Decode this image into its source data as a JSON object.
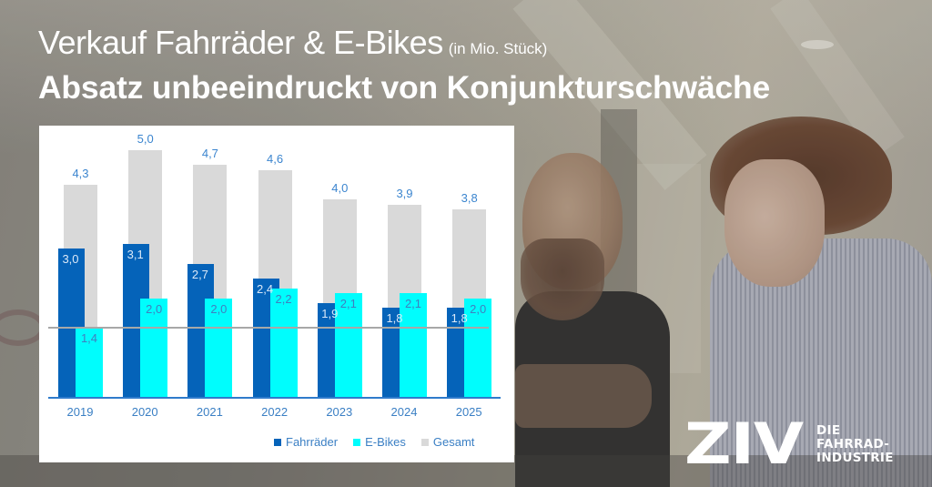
{
  "header": {
    "title": "Verkauf Fahrräder & E-Bikes",
    "unit": "(in Mio. Stück)",
    "headline": "Absatz unbeeindruckt von Konjunkturschwäche"
  },
  "logo": {
    "mark": "ZIV",
    "tagline": [
      "DIE",
      "FAHRRAD-",
      "INDUSTRIE"
    ]
  },
  "colors": {
    "fahrraeder": "#0563b9",
    "ebikes": "#00fdfd",
    "gesamt": "#d9d9d9",
    "label_blue": "#3b85cf"
  },
  "chart_data": {
    "type": "bar",
    "title": "Verkauf Fahrräder & E-Bikes (in Mio. Stück)",
    "subtitle": "Absatz unbeeindruckt von Konjunkturschwäche",
    "xlabel": "",
    "ylabel": "",
    "categories": [
      "2019",
      "2020",
      "2021",
      "2022",
      "2023",
      "2024",
      "2025"
    ],
    "series": [
      {
        "name": "Fahrräder",
        "color": "#0563b9",
        "values": [
          3.0,
          3.1,
          2.7,
          2.4,
          1.9,
          1.8,
          1.8
        ],
        "labels": [
          "3,0",
          "3,1",
          "2,7",
          "2,4",
          "1,9",
          "1,8",
          "1,8"
        ]
      },
      {
        "name": "E-Bikes",
        "color": "#00fdfd",
        "values": [
          1.4,
          2.0,
          2.0,
          2.2,
          2.1,
          2.1,
          2.0
        ],
        "labels": [
          "1,4",
          "2,0",
          "2,0",
          "2,2",
          "2,1",
          "2,1",
          "2,0"
        ]
      },
      {
        "name": "Gesamt",
        "color": "#d9d9d9",
        "values": [
          4.3,
          5.0,
          4.7,
          4.6,
          4.0,
          3.9,
          3.8
        ],
        "labels": [
          "4,3",
          "5,0",
          "4,7",
          "4,6",
          "4,0",
          "3,9",
          "3,8"
        ]
      }
    ],
    "reference_line": {
      "value": 1.4,
      "color": "#a8a8a8"
    },
    "ylim": [
      0,
      5.5
    ],
    "grid": false,
    "legend_position": "bottom-right",
    "legend": [
      "Fahrräder",
      "E-Bikes",
      "Gesamt"
    ]
  }
}
